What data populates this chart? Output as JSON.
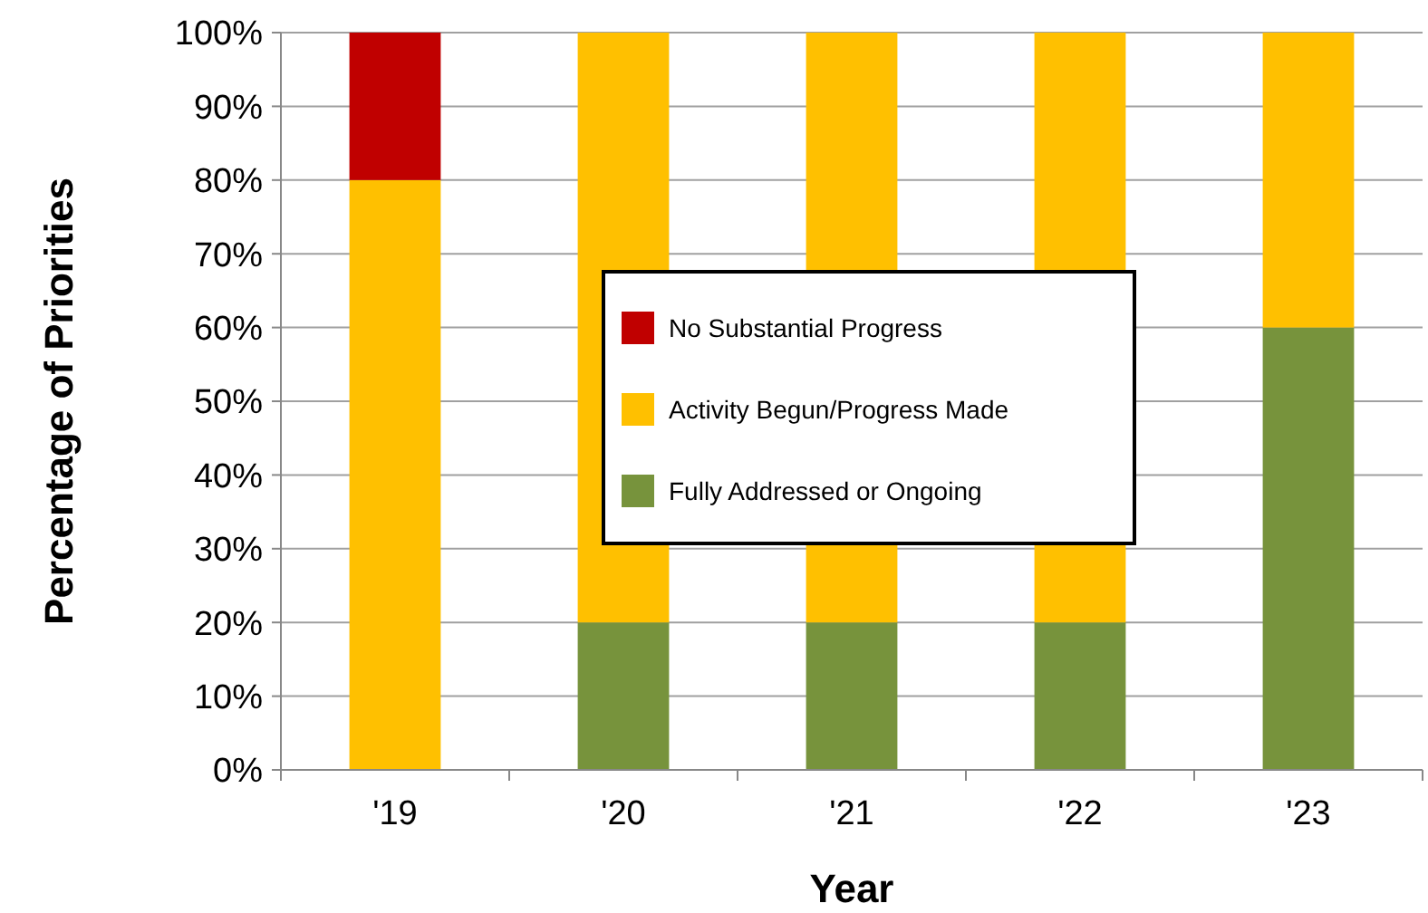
{
  "chart_data": {
    "type": "bar",
    "stacked": true,
    "xlabel": "Year",
    "ylabel": "Percentage of Priorities",
    "categories": [
      "'19",
      "'20",
      "'21",
      "'22",
      "'23"
    ],
    "series": [
      {
        "name": "Fully Addressed or Ongoing",
        "color": "#77933c",
        "values": [
          0,
          20,
          20,
          20,
          60
        ]
      },
      {
        "name": "Activity Begun/Progress Made",
        "color": "#ffc000",
        "values": [
          80,
          80,
          80,
          80,
          40
        ]
      },
      {
        "name": "No Substantial Progress",
        "color": "#c00000",
        "values": [
          20,
          0,
          0,
          0,
          0
        ]
      }
    ],
    "ylim": [
      0,
      100
    ],
    "yticks": [
      {
        "value": 0,
        "label": "0%"
      },
      {
        "value": 10,
        "label": "10%"
      },
      {
        "value": 20,
        "label": "20%"
      },
      {
        "value": 30,
        "label": "30%"
      },
      {
        "value": 40,
        "label": "40%"
      },
      {
        "value": 50,
        "label": "50%"
      },
      {
        "value": 60,
        "label": "60%"
      },
      {
        "value": 70,
        "label": "70%"
      },
      {
        "value": 80,
        "label": "80%"
      },
      {
        "value": 90,
        "label": "90%"
      },
      {
        "value": 100,
        "label": "100%"
      }
    ],
    "grid": "y",
    "legend": "center"
  }
}
